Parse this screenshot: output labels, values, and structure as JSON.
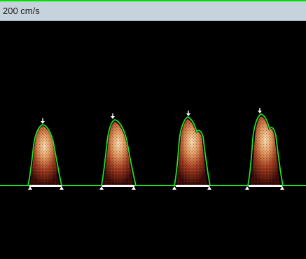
{
  "scale": {
    "label": "200 cm/s"
  },
  "colors": {
    "envelope": "#22dd22",
    "baseline": "#22dd22",
    "interval": "#ffffff",
    "marker": "#ffffff",
    "scale_bar": "#c7d3dc",
    "top_line": "#00e000",
    "signal_core": "#f0c8a0",
    "signal_mid": "#c85a2a",
    "signal_outer": "#6a1a10"
  },
  "icons": {
    "peak_marker": "down-arrow-icon",
    "cycle_marker": "triangle-icon"
  },
  "cycles": [
    {
      "peak_arrow": true,
      "variant": "single"
    },
    {
      "peak_arrow": true,
      "variant": "single"
    },
    {
      "peak_arrow": true,
      "variant": "notched"
    },
    {
      "peak_arrow": true,
      "variant": "notched"
    }
  ]
}
